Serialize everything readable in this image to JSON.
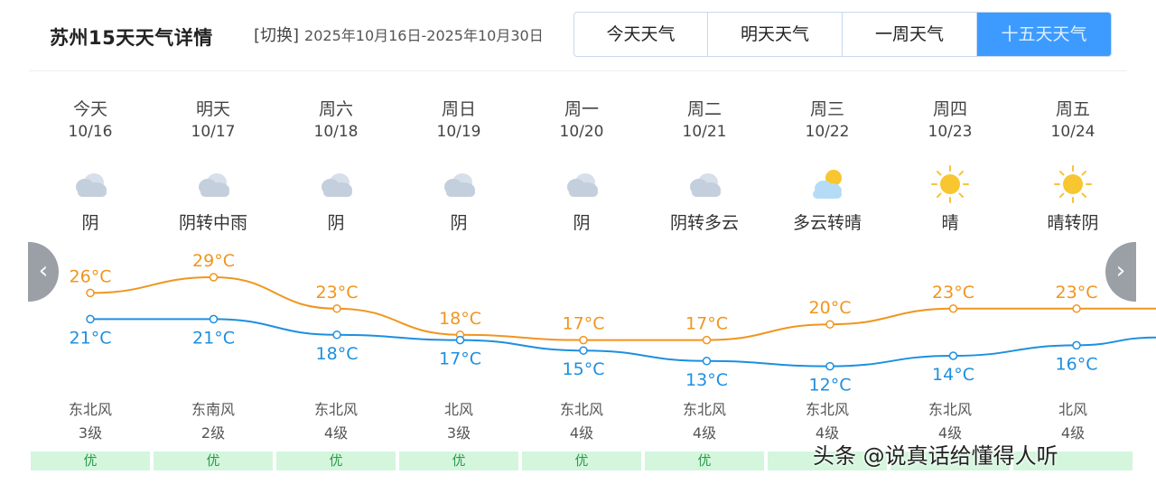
{
  "header": {
    "title": "苏州15天天气详情",
    "switch_label": "[切换]",
    "date_range": "2025年10月16日-2025年10月30日"
  },
  "tabs": [
    {
      "label": "今天天气",
      "active": false
    },
    {
      "label": "明天天气",
      "active": false
    },
    {
      "label": "一周天气",
      "active": false
    },
    {
      "label": "十五天天气",
      "active": true
    }
  ],
  "days": [
    {
      "weekday": "今天",
      "date": "10/16",
      "icon": "cloud-icon",
      "condition": "阴",
      "high": 26,
      "high_label": "26°C",
      "low": 21,
      "low_label": "21°C",
      "wind_dir": "东北风",
      "wind_level": "3级",
      "aqi": "优"
    },
    {
      "weekday": "明天",
      "date": "10/17",
      "icon": "cloud-icon",
      "condition": "阴转中雨",
      "high": 29,
      "high_label": "29°C",
      "low": 21,
      "low_label": "21°C",
      "wind_dir": "东南风",
      "wind_level": "2级",
      "aqi": "优"
    },
    {
      "weekday": "周六",
      "date": "10/18",
      "icon": "cloud-icon",
      "condition": "阴",
      "high": 23,
      "high_label": "23°C",
      "low": 18,
      "low_label": "18°C",
      "wind_dir": "东北风",
      "wind_level": "4级",
      "aqi": "优"
    },
    {
      "weekday": "周日",
      "date": "10/19",
      "icon": "cloud-icon",
      "condition": "阴",
      "high": 18,
      "high_label": "18°C",
      "low": 17,
      "low_label": "17°C",
      "wind_dir": "北风",
      "wind_level": "3级",
      "aqi": "优"
    },
    {
      "weekday": "周一",
      "date": "10/20",
      "icon": "cloud-icon",
      "condition": "阴",
      "high": 17,
      "high_label": "17°C",
      "low": 15,
      "low_label": "15°C",
      "wind_dir": "东北风",
      "wind_level": "4级",
      "aqi": "优"
    },
    {
      "weekday": "周二",
      "date": "10/21",
      "icon": "cloud-icon",
      "condition": "阴转多云",
      "high": 17,
      "high_label": "17°C",
      "low": 13,
      "low_label": "13°C",
      "wind_dir": "东北风",
      "wind_level": "4级",
      "aqi": "优"
    },
    {
      "weekday": "周三",
      "date": "10/22",
      "icon": "partly-cloudy-icon",
      "condition": "多云转晴",
      "high": 20,
      "high_label": "20°C",
      "low": 12,
      "low_label": "12°C",
      "wind_dir": "东北风",
      "wind_level": "4级",
      "aqi": ""
    },
    {
      "weekday": "周四",
      "date": "10/23",
      "icon": "sun-icon",
      "condition": "晴",
      "high": 23,
      "high_label": "23°C",
      "low": 14,
      "low_label": "14°C",
      "wind_dir": "东北风",
      "wind_level": "4级",
      "aqi": ""
    },
    {
      "weekday": "周五",
      "date": "10/24",
      "icon": "sun-icon",
      "condition": "晴转阴",
      "high": 23,
      "high_label": "23°C",
      "low": 16,
      "low_label": "16°C",
      "wind_dir": "北风",
      "wind_level": "4级",
      "aqi": ""
    }
  ],
  "colors": {
    "high_line": "#f0951f",
    "low_line": "#1d8fe0",
    "tab_active": "#3d9bff",
    "aqi_bg": "#d4f6dd",
    "aqi_text": "#2e9a4a"
  },
  "nav": {
    "prev_icon": "chevron-left-icon",
    "next_icon": "chevron-right-icon"
  },
  "watermark": "头条 @说真话给懂得人听"
}
